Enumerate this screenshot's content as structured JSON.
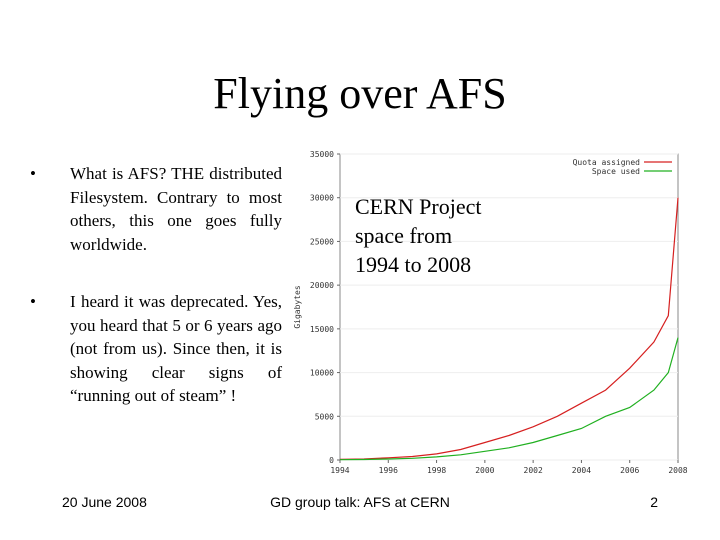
{
  "slide": {
    "title": "Flying over AFS",
    "bullets": [
      "What is AFS? THE distributed Filesystem. Contrary to most others, this one goes fully worldwide.",
      "I heard it was deprecated. Yes, you heard that 5 or 6 years ago (not from us). Since then, it is showing clear signs of  “running out of steam” !"
    ],
    "overlay_text": [
      "CERN Project",
      "space from",
      "1994 to 2008"
    ]
  },
  "footer": {
    "date": "20 June 2008",
    "center": "GD group talk: AFS at CERN",
    "page": "2"
  },
  "chart_data": {
    "type": "line",
    "ylabel": "Gigabytes",
    "xlim": [
      1994,
      2008
    ],
    "ylim": [
      0,
      35000
    ],
    "x_ticks": [
      "1994",
      "1996",
      "1998",
      "2000",
      "2002",
      "2004",
      "2006",
      "2008"
    ],
    "y_ticks": [
      "0",
      "5000",
      "10000",
      "15000",
      "20000",
      "25000",
      "30000",
      "35000"
    ],
    "legend_position": "top-right",
    "series": [
      {
        "name": "Quota assigned",
        "color": "#d62020",
        "x": [
          1994,
          1995,
          1996,
          1997,
          1998,
          1999,
          2000,
          2001,
          2002,
          2003,
          2004,
          2005,
          2006,
          2007,
          2007.6,
          2008
        ],
        "y": [
          80,
          120,
          250,
          400,
          700,
          1200,
          2000,
          2800,
          3800,
          5000,
          6500,
          8000,
          10500,
          13500,
          16500,
          30000
        ]
      },
      {
        "name": "Space used",
        "color": "#20b020",
        "x": [
          1994,
          1995,
          1996,
          1997,
          1998,
          1999,
          2000,
          2001,
          2002,
          2003,
          2004,
          2005,
          2006,
          2007,
          2007.6,
          2008
        ],
        "y": [
          40,
          60,
          120,
          200,
          350,
          600,
          1000,
          1400,
          2000,
          2800,
          3600,
          5000,
          6000,
          8000,
          10000,
          14000
        ]
      }
    ]
  }
}
